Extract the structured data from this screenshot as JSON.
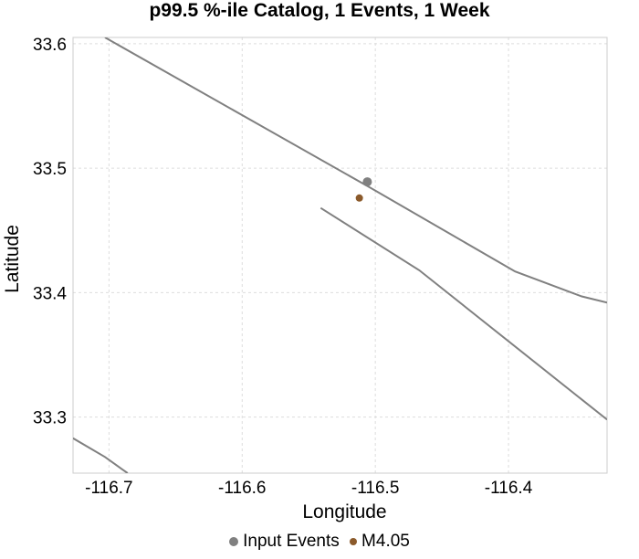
{
  "chart_data": {
    "type": "scatter",
    "title": "p99.5 %-ile Catalog, 1 Events, 1 Week",
    "xlabel": "Longitude",
    "ylabel": "Latitude",
    "xlim": [
      -116.727,
      -116.326
    ],
    "ylim": [
      33.255,
      33.605
    ],
    "x_ticks": [
      -116.7,
      -116.6,
      -116.5,
      -116.4
    ],
    "x_tick_labels": [
      "-116.7",
      "-116.6",
      "-116.5",
      "-116.4"
    ],
    "y_ticks": [
      33.3,
      33.4,
      33.5,
      33.6
    ],
    "y_tick_labels": [
      "33.3",
      "33.4",
      "33.5",
      "33.6"
    ],
    "grid": true,
    "legend_position": "bottom",
    "fault_color": "#808080",
    "fault_lines": [
      [
        [
          -116.703,
          33.605
        ],
        [
          -116.505,
          33.485
        ],
        [
          -116.395,
          33.417
        ],
        [
          -116.345,
          33.397
        ],
        [
          -116.326,
          33.392
        ]
      ],
      [
        [
          -116.541,
          33.468
        ],
        [
          -116.467,
          33.418
        ],
        [
          -116.326,
          33.298
        ]
      ],
      [
        [
          -116.727,
          33.283
        ],
        [
          -116.703,
          33.268
        ],
        [
          -116.69,
          33.258
        ],
        [
          -116.686,
          33.255
        ]
      ]
    ],
    "series": [
      {
        "name": "Input Events",
        "color": "#808080",
        "size": 5,
        "points": [
          [
            -116.506,
            33.489
          ]
        ]
      },
      {
        "name": "M4.05",
        "color": "#8b5a2b",
        "size": 4,
        "points": [
          [
            -116.512,
            33.476
          ]
        ]
      }
    ]
  }
}
